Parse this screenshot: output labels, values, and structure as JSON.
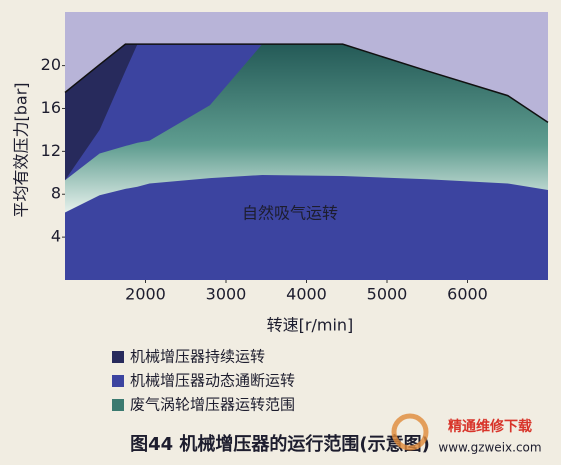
{
  "chart_data": {
    "type": "area",
    "title": "图44 机械增压器的运行范围(示意图)",
    "x_label": "转速[r/min]",
    "y_label": "平均有效压力[bar]",
    "annotation": "自然吸气运转",
    "watermark": [
      "精通维修下载",
      "www.gzweix.com"
    ],
    "x": [
      1000,
      1430,
      1750,
      1900,
      2050,
      2800,
      3450,
      4450,
      5500,
      6500,
      7000
    ],
    "series": [
      {
        "name": "机械增压器持续运转",
        "color": "#272a5c",
        "values": [
          17.5,
          20.1,
          22,
          22,
          22,
          22,
          22,
          22,
          19.5,
          17.2,
          14.7
        ]
      },
      {
        "name": "机械增压器动态通断运转",
        "color": "#3c44a0",
        "values": [
          9.3,
          14,
          19.5,
          22,
          22,
          22,
          22,
          22,
          19.5,
          17.2,
          14.7
        ]
      },
      {
        "name": "废气涡轮增压器运转范围",
        "color": "#3b7a70",
        "values": [
          9.3,
          11.8,
          12.5,
          12.8,
          13,
          16.3,
          22,
          22,
          19.5,
          17.2,
          14.7
        ],
        "lower": [
          6.3,
          7.9,
          8.5,
          8.7,
          9.0,
          9.5,
          9.8,
          9.7,
          9.4,
          9.0,
          8.4
        ]
      }
    ],
    "xlim": [
      1000,
      7000
    ],
    "ylim": [
      0,
      25
    ],
    "xticks": [
      2000,
      3000,
      4000,
      5000,
      6000
    ],
    "yticks": [
      4,
      8,
      12,
      16,
      20
    ],
    "grid": false
  }
}
